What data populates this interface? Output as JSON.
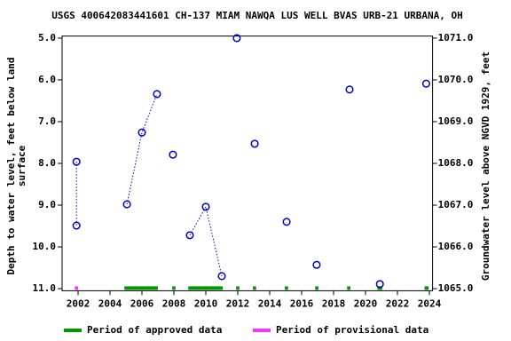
{
  "chart_data": {
    "type": "scatter",
    "title": "USGS 400642083441601 CH-137 MIAM NAWQA LUS WELL BVAS URB-21 URBANA, OH",
    "ylabel": [
      "Depth to water level, feet below land",
      "surface"
    ],
    "y2label": "Groundwater level above NGVD 1929, feet",
    "xlim": [
      2001,
      2024.2
    ],
    "xticks": [
      2002,
      2004,
      2006,
      2008,
      2010,
      2012,
      2014,
      2016,
      2018,
      2020,
      2022,
      2024
    ],
    "ylim": [
      11.05,
      4.95
    ],
    "yticks": [
      {
        "value": 5,
        "label": "5.0"
      },
      {
        "value": 6,
        "label": "6.0"
      },
      {
        "value": 7,
        "label": "7.0"
      },
      {
        "value": 8,
        "label": "8.0"
      },
      {
        "value": 9,
        "label": "9.0"
      },
      {
        "value": 10,
        "label": "10.0"
      },
      {
        "value": 11,
        "label": "11.0"
      }
    ],
    "y2lim": [
      1064.95,
      1071.05
    ],
    "y2ticks": [
      {
        "value": 1065,
        "label": "1065.0"
      },
      {
        "value": 1066,
        "label": "1066.0"
      },
      {
        "value": 1067,
        "label": "1067.0"
      },
      {
        "value": 1068,
        "label": "1068.0"
      },
      {
        "value": 1069,
        "label": "1069.0"
      },
      {
        "value": 1070,
        "label": "1070.0"
      },
      {
        "value": 1071,
        "label": "1071.0"
      }
    ],
    "color": "#0000cc",
    "series": [
      {
        "x": [
          2001.9,
          2001.9
        ],
        "values": [
          7.96,
          9.49
        ]
      },
      {
        "x": [
          2005.06,
          2006.0,
          2006.94
        ],
        "values": [
          8.98,
          7.26,
          6.34
        ]
      },
      {
        "x": [
          2007.94
        ],
        "values": [
          7.79
        ]
      },
      {
        "x": [
          2009.0,
          2010.0,
          2011.0
        ],
        "values": [
          9.72,
          9.04,
          10.7
        ]
      },
      {
        "x": [
          2011.94
        ],
        "values": [
          5.0
        ]
      },
      {
        "x": [
          2013.06
        ],
        "values": [
          7.53
        ]
      },
      {
        "x": [
          2015.06
        ],
        "values": [
          9.4
        ]
      },
      {
        "x": [
          2016.94
        ],
        "values": [
          10.43
        ]
      },
      {
        "x": [
          2019.0
        ],
        "values": [
          6.23
        ]
      },
      {
        "x": [
          2020.9
        ],
        "values": [
          10.89
        ]
      },
      {
        "x": [
          2023.8
        ],
        "values": [
          6.09
        ]
      }
    ],
    "periods": [
      {
        "name": "Period of approved data",
        "color": "#009900",
        "ranges": [
          [
            2004.9,
            2007.0
          ],
          [
            2007.9,
            2008.1
          ],
          [
            2008.9,
            2011.06
          ],
          [
            2011.9,
            2012.1
          ],
          [
            2012.95,
            2013.15
          ],
          [
            2014.95,
            2015.15
          ],
          [
            2016.85,
            2017.05
          ],
          [
            2018.85,
            2019.05
          ],
          [
            2020.75,
            2021.05
          ],
          [
            2023.7,
            2023.95
          ]
        ]
      },
      {
        "name": "Period of provisional data",
        "color": "#ff33ff",
        "ranges": [
          [
            2001.8,
            2002.0
          ]
        ]
      }
    ]
  }
}
